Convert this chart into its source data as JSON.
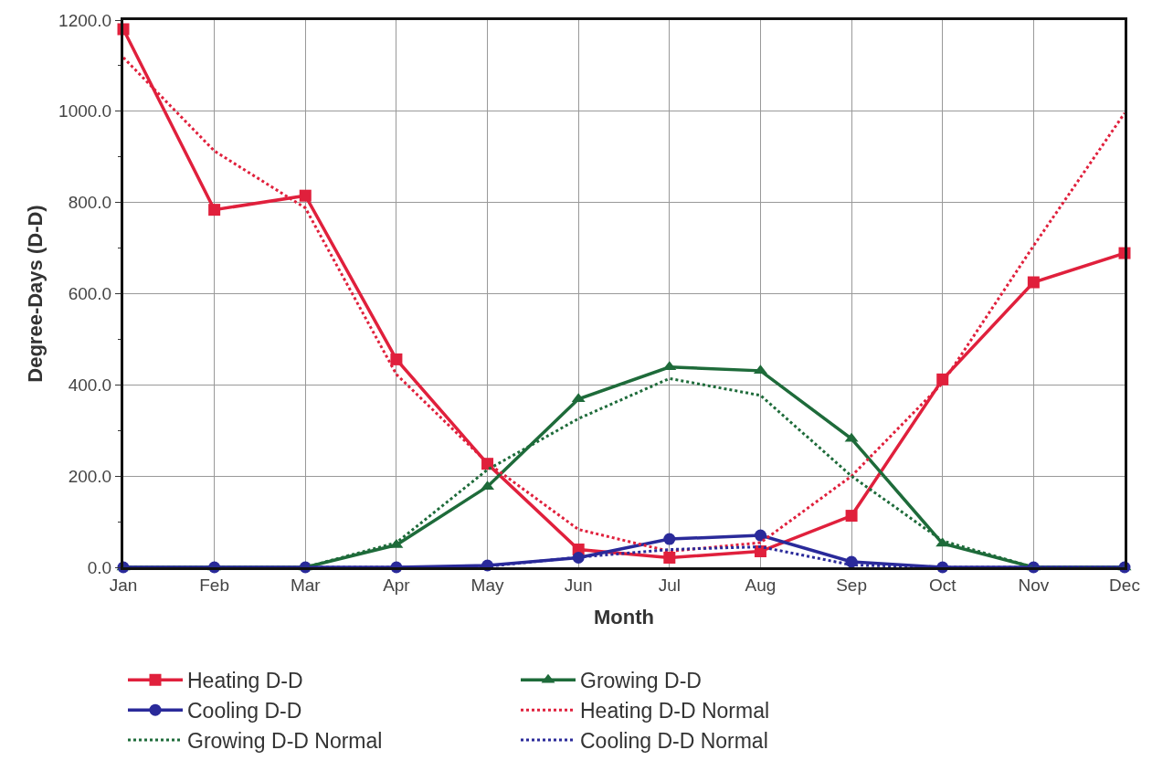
{
  "chart_data": {
    "type": "line",
    "xlabel": "Month",
    "ylabel": "Degree-Days (D-D)",
    "categories": [
      "Jan",
      "Feb",
      "Mar",
      "Apr",
      "May",
      "Jun",
      "Jul",
      "Aug",
      "Sep",
      "Oct",
      "Nov",
      "Dec"
    ],
    "series": [
      {
        "name": "Heating D-D",
        "color": "#e0203c",
        "marker": "square",
        "line_style": "solid",
        "values": [
          1180,
          784,
          815,
          456,
          227,
          39,
          21,
          35,
          113,
          412,
          625,
          689
        ]
      },
      {
        "name": "Growing D-D",
        "color": "#1e6b3a",
        "marker": "triangle",
        "line_style": "solid",
        "values": [
          0,
          0,
          0,
          49,
          177,
          369,
          439,
          431,
          282,
          52,
          0,
          0
        ]
      },
      {
        "name": "Cooling D-D",
        "color": "#2a2a9a",
        "marker": "circle",
        "line_style": "solid",
        "values": [
          0,
          0,
          0,
          0,
          4,
          21,
          62,
          70,
          12,
          0,
          0,
          0
        ]
      },
      {
        "name": "Heating D-D Normal",
        "color": "#e0203c",
        "marker": "none",
        "line_style": "dotted",
        "values": [
          1118,
          913,
          788,
          423,
          229,
          83,
          35,
          54,
          200,
          404,
          705,
          996
        ]
      },
      {
        "name": "Growing D-D Normal",
        "color": "#1e6b3a",
        "marker": "none",
        "line_style": "dotted",
        "values": [
          0,
          0,
          0,
          54,
          214,
          326,
          414,
          377,
          200,
          58,
          0,
          0
        ]
      },
      {
        "name": "Cooling D-D Normal",
        "color": "#2a2a9a",
        "marker": "none",
        "line_style": "dotted",
        "values": [
          0,
          0,
          0,
          0,
          2,
          22,
          39,
          45,
          5,
          0,
          0,
          0
        ]
      }
    ],
    "ylim": [
      0,
      1200
    ],
    "yticks": [
      {
        "value": 0,
        "label": "0.0"
      },
      {
        "value": 200,
        "label": "200.0"
      },
      {
        "value": 400,
        "label": "400.0"
      },
      {
        "value": 600,
        "label": "600.0"
      },
      {
        "value": 800,
        "label": "800.0"
      },
      {
        "value": 1000,
        "label": "1000.0"
      },
      {
        "value": 1200,
        "label": "1200.0"
      }
    ],
    "grid": true,
    "legend": "bottom"
  }
}
